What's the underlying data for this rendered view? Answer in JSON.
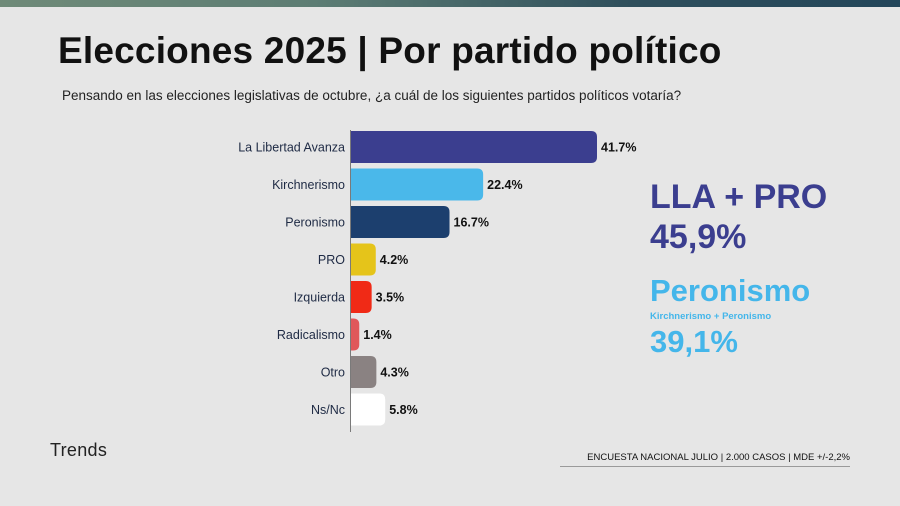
{
  "title": "Elecciones 2025 | Por partido político",
  "subtitle": "Pensando en las elecciones legislativas de octubre, ¿a cuál de los siguientes partidos políticos votaría?",
  "chart_data": {
    "type": "bar",
    "orientation": "horizontal",
    "title": "Elecciones 2025 | Por partido político",
    "xlabel": "",
    "ylabel": "",
    "xlim": [
      0,
      41.7
    ],
    "grid": false,
    "categories": [
      "La Libertad Avanza",
      "Kirchnerismo",
      "Peronismo",
      "PRO",
      "Izquierda",
      "Radicalismo",
      "Otro",
      "Ns/Nc"
    ],
    "values": [
      41.7,
      22.4,
      16.7,
      4.2,
      3.5,
      1.4,
      4.3,
      5.8
    ],
    "value_labels": [
      "41.7%",
      "22.4%",
      "16.7%",
      "4.2%",
      "3.5%",
      "1.4%",
      "4.3%",
      "5.8%"
    ],
    "colors": [
      "#3b3e8f",
      "#4ab8ea",
      "#1c3f6e",
      "#e5c41a",
      "#f02a16",
      "#e0585a",
      "#8a8282",
      "#ffffff"
    ]
  },
  "callouts": {
    "lla_pro_title": "LLA + PRO",
    "lla_pro_value": "45,9%",
    "peronismo_title": "Peronismo",
    "peronismo_sub": "Kirchnerismo + Peronismo",
    "peronismo_value": "39,1%"
  },
  "brand": "Trends",
  "footnote": "ENCUESTA NACIONAL JULIO | 2.000 CASOS | MDE +/-2,2%",
  "colors": {
    "background": "#e6e6e6",
    "lla_pro": "#3b3e8f",
    "peronismo": "#44b6ea"
  }
}
